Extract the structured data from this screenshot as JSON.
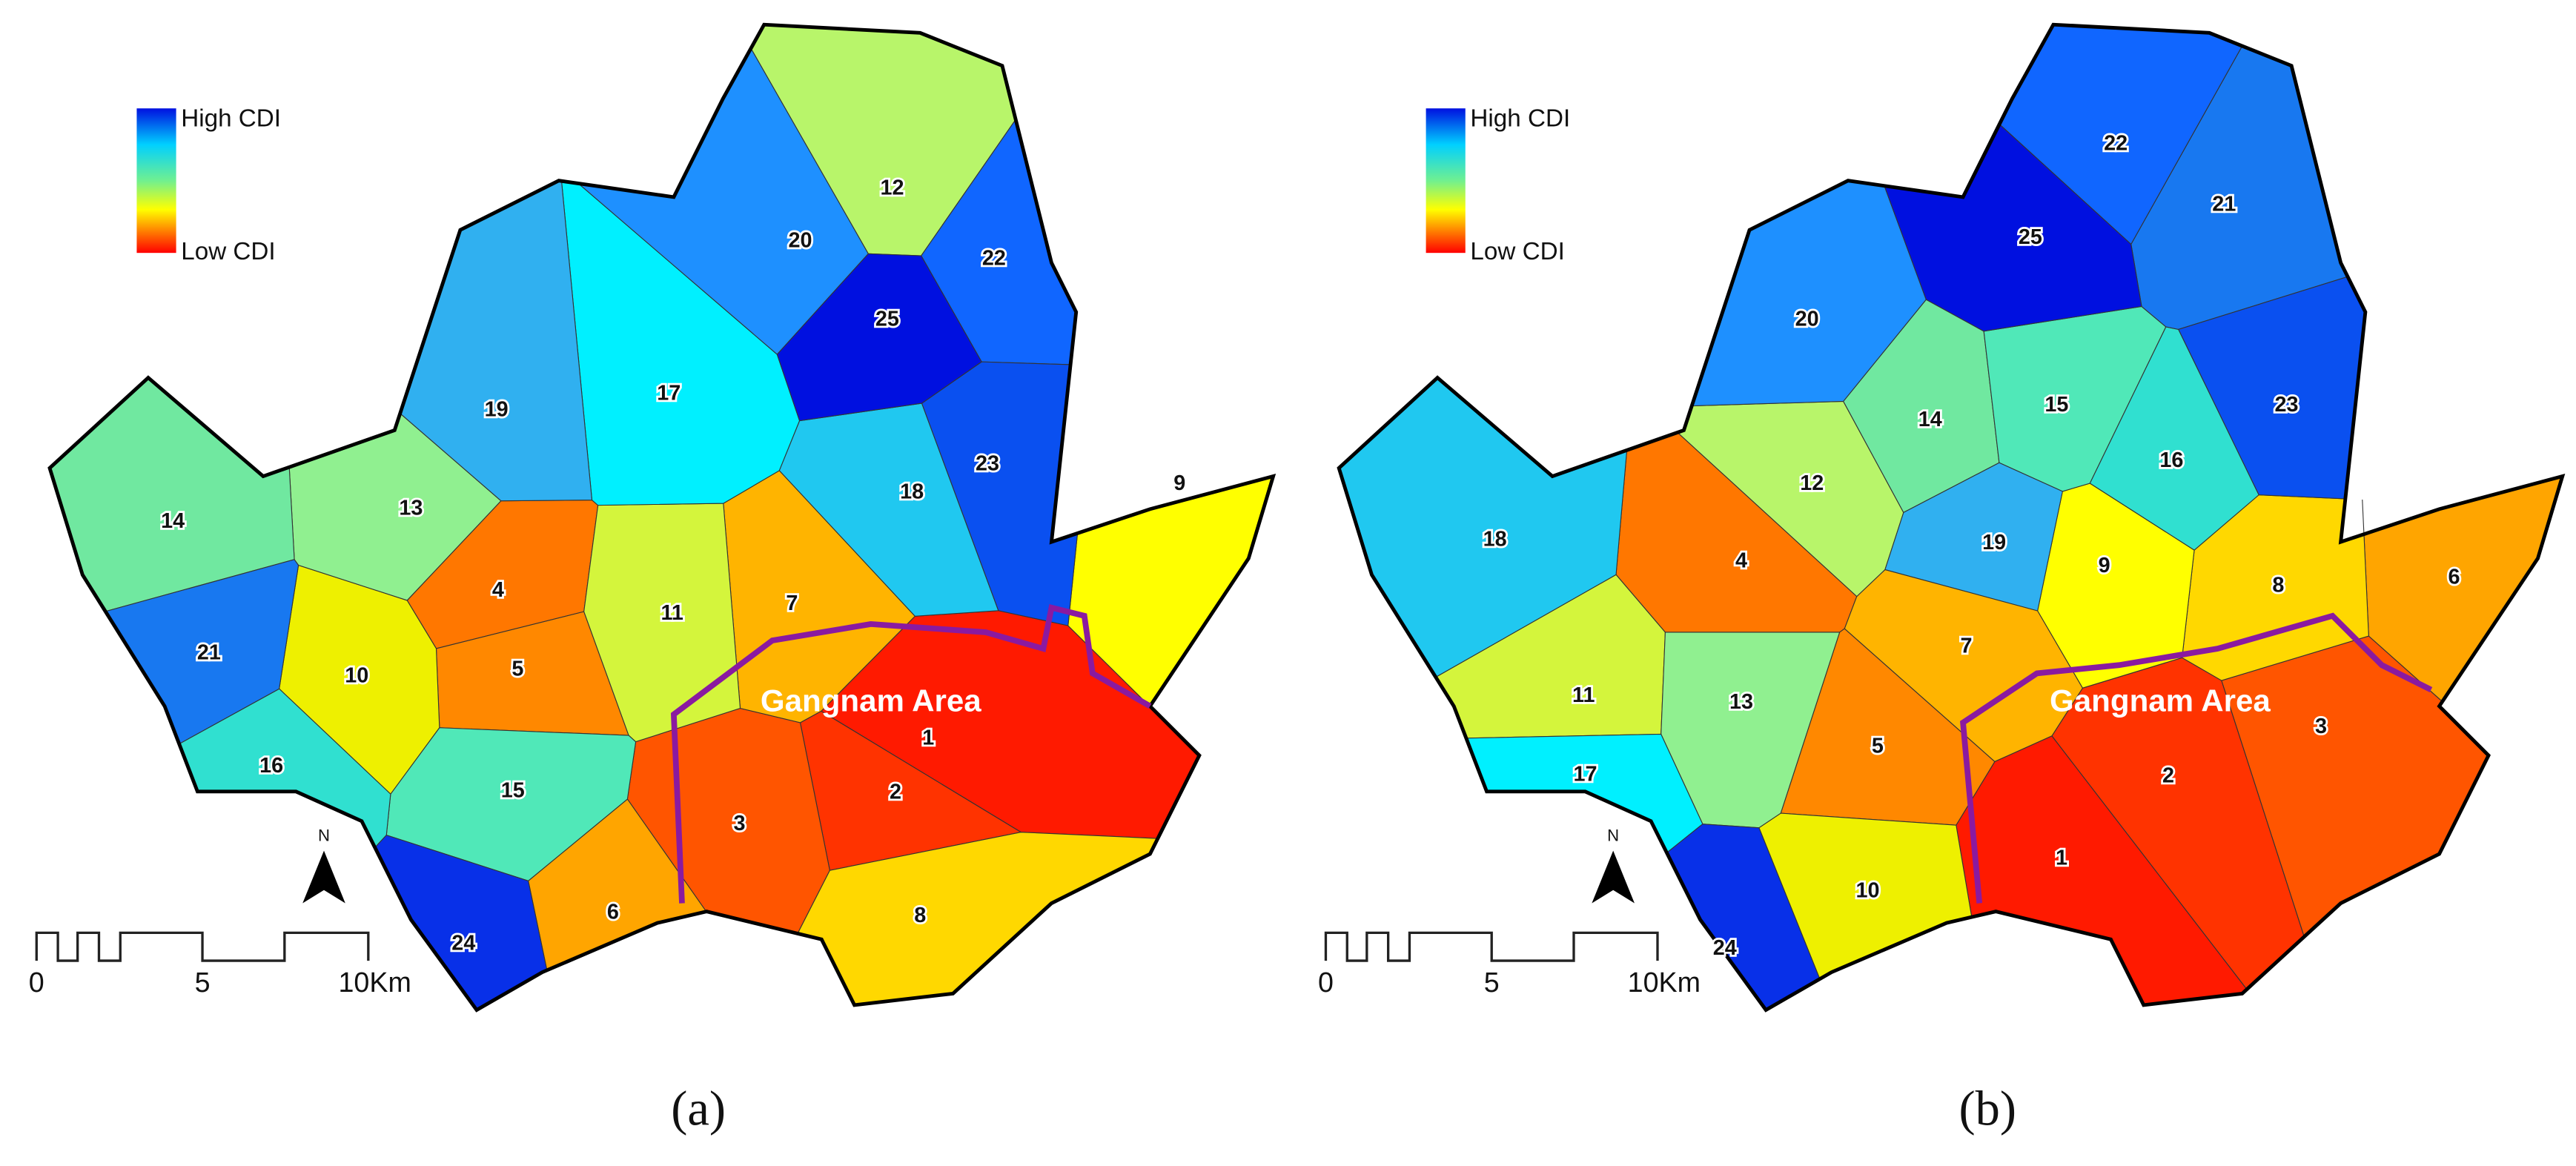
{
  "panels": [
    {
      "caption": "(a)",
      "legend": {
        "high": "High CDI",
        "low": "Low CDI"
      },
      "area_label": "Gangnam Area",
      "north": "N",
      "scale": [
        "0",
        "5",
        "10Km"
      ],
      "districts": [
        {
          "label": "1",
          "color": "#ff1a00"
        },
        {
          "label": "2",
          "color": "#ff3300"
        },
        {
          "label": "3",
          "color": "#ff5500"
        },
        {
          "label": "4",
          "color": "#ff7700"
        },
        {
          "label": "5",
          "color": "#ff8800"
        },
        {
          "label": "6",
          "color": "#ffa500"
        },
        {
          "label": "7",
          "color": "#ffb400"
        },
        {
          "label": "8",
          "color": "#ffd800"
        },
        {
          "label": "9",
          "color": "#ffff00"
        },
        {
          "label": "10",
          "color": "#eef000"
        },
        {
          "label": "11",
          "color": "#d4f53c"
        },
        {
          "label": "12",
          "color": "#b8f56a"
        },
        {
          "label": "13",
          "color": "#90f090"
        },
        {
          "label": "14",
          "color": "#70e8a0"
        },
        {
          "label": "15",
          "color": "#50e8b8"
        },
        {
          "label": "16",
          "color": "#30e0d0"
        },
        {
          "label": "17",
          "color": "#00f0ff"
        },
        {
          "label": "18",
          "color": "#20c8f0"
        },
        {
          "label": "19",
          "color": "#30b0f0"
        },
        {
          "label": "20",
          "color": "#1e90ff"
        },
        {
          "label": "21",
          "color": "#1878f0"
        },
        {
          "label": "22",
          "color": "#1066ff"
        },
        {
          "label": "23",
          "color": "#0a50f0"
        },
        {
          "label": "24",
          "color": "#0830e8"
        },
        {
          "label": "25",
          "color": "#0010e0"
        }
      ]
    },
    {
      "caption": "(b)",
      "legend": {
        "high": "High CDI",
        "low": "Low CDI"
      },
      "area_label": "Gangnam Area",
      "north": "N",
      "scale": [
        "0",
        "5",
        "10Km"
      ],
      "districts": [
        {
          "label": "1",
          "color": "#ff1a00"
        },
        {
          "label": "2",
          "color": "#ff3300"
        },
        {
          "label": "3",
          "color": "#ff5500"
        },
        {
          "label": "4",
          "color": "#ff7700"
        },
        {
          "label": "5",
          "color": "#ff8800"
        },
        {
          "label": "6",
          "color": "#ffa500"
        },
        {
          "label": "7",
          "color": "#ffb400"
        },
        {
          "label": "8",
          "color": "#ffd800"
        },
        {
          "label": "9",
          "color": "#ffff00"
        },
        {
          "label": "10",
          "color": "#eef000"
        },
        {
          "label": "11",
          "color": "#d4f53c"
        },
        {
          "label": "12",
          "color": "#b8f56a"
        },
        {
          "label": "13",
          "color": "#90f090"
        },
        {
          "label": "14",
          "color": "#70e8a0"
        },
        {
          "label": "15",
          "color": "#50e8b8"
        },
        {
          "label": "16",
          "color": "#30e0d0"
        },
        {
          "label": "17",
          "color": "#00f0ff"
        },
        {
          "label": "18",
          "color": "#20c8f0"
        },
        {
          "label": "19",
          "color": "#30b0f0"
        },
        {
          "label": "20",
          "color": "#1e90ff"
        },
        {
          "label": "21",
          "color": "#1878f0"
        },
        {
          "label": "22",
          "color": "#1066ff"
        },
        {
          "label": "23",
          "color": "#0a50f0"
        },
        {
          "label": "24",
          "color": "#0830e8"
        },
        {
          "label": "25",
          "color": "#0010e0"
        }
      ]
    }
  ]
}
